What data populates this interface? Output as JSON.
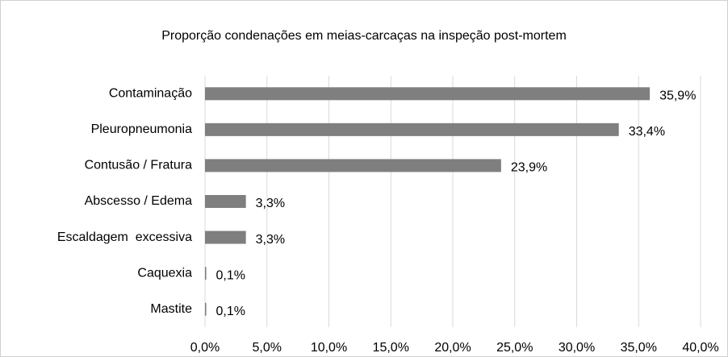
{
  "chart_data": {
    "type": "bar",
    "orientation": "horizontal",
    "title": "Proporção condenações em meias-carcaças na inspeção post-mortem",
    "categories": [
      "Contaminação",
      "Pleuropneumonia",
      "Contusão / Fratura",
      "Abscesso / Edema",
      "Escaldagem  excessiva",
      "Caquexia",
      "Mastite"
    ],
    "values": [
      35.9,
      33.4,
      23.9,
      3.3,
      3.3,
      0.1,
      0.1
    ],
    "value_labels": [
      "35,9%",
      "33,4%",
      "23,9%",
      "3,3%",
      "3,3%",
      "0,1%",
      "0,1%"
    ],
    "color": "#7f7f7f",
    "xlim": [
      0,
      40
    ],
    "xticks": [
      {
        "value": 0,
        "label": "0,0%"
      },
      {
        "value": 5,
        "label": "5,0%"
      },
      {
        "value": 10,
        "label": "10,0%"
      },
      {
        "value": 15,
        "label": "15,0%"
      },
      {
        "value": 20,
        "label": "20,0%"
      },
      {
        "value": 25,
        "label": "25,0%"
      },
      {
        "value": 30,
        "label": "30,0%"
      },
      {
        "value": 35,
        "label": "35,0%"
      },
      {
        "value": 40,
        "label": "40,0%"
      }
    ],
    "grid": true
  }
}
